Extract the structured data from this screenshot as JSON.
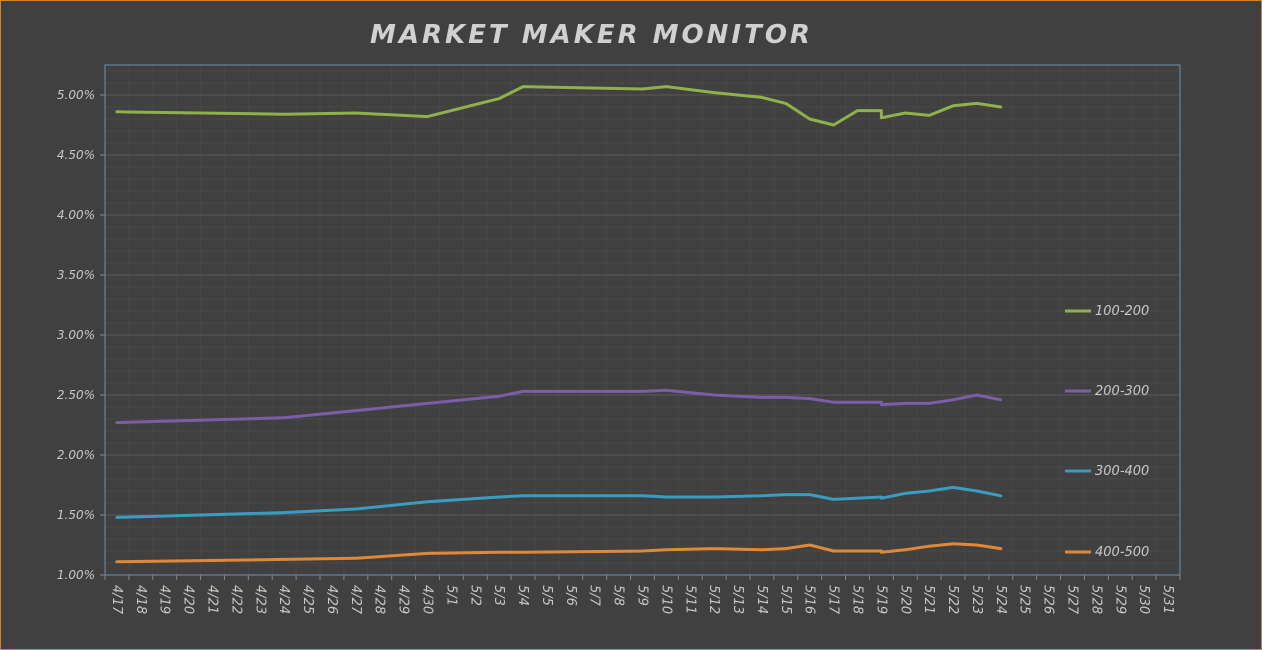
{
  "chart_data": {
    "type": "line",
    "title": "MARKET MAKER MONITOR",
    "xlabel": "",
    "ylabel": "",
    "ylim": [
      0.01,
      0.0525
    ],
    "y_ticks": [
      "1.00%",
      "1.50%",
      "2.00%",
      "2.50%",
      "3.00%",
      "3.50%",
      "4.00%",
      "4.50%",
      "5.00%"
    ],
    "categories": [
      "4/17",
      "4/18",
      "4/19",
      "4/20",
      "4/21",
      "4/22",
      "4/23",
      "4/24",
      "4/25",
      "4/26",
      "4/27",
      "4/28",
      "4/29",
      "4/30",
      "5/1",
      "5/2",
      "5/3",
      "5/4",
      "5/5",
      "5/6",
      "5/7",
      "5/8",
      "5/9",
      "5/10",
      "5/11",
      "5/12",
      "5/13",
      "5/14",
      "5/15",
      "5/16",
      "5/17",
      "5/18",
      "5/19",
      "5/20",
      "5/21",
      "5/22",
      "5/23",
      "5/24",
      "5/25",
      "5/26",
      "5/27",
      "5/28",
      "5/29",
      "5/30",
      "5/31"
    ],
    "legend_position": "right",
    "grid": true,
    "series": [
      {
        "name": "100-200",
        "color": "#8fb04b",
        "points": [
          {
            "x": 0.0,
            "y": 0.0486
          },
          {
            "x": 7.0,
            "y": 0.0484
          },
          {
            "x": 10.0,
            "y": 0.0485
          },
          {
            "x": 13.0,
            "y": 0.0482
          },
          {
            "x": 16.0,
            "y": 0.0497
          },
          {
            "x": 17.0,
            "y": 0.0507
          },
          {
            "x": 22.0,
            "y": 0.0505
          },
          {
            "x": 23.0,
            "y": 0.0507
          },
          {
            "x": 25.0,
            "y": 0.0502
          },
          {
            "x": 27.0,
            "y": 0.0498
          },
          {
            "x": 28.0,
            "y": 0.0493
          },
          {
            "x": 29.0,
            "y": 0.048
          },
          {
            "x": 30.0,
            "y": 0.0475
          },
          {
            "x": 31.0,
            "y": 0.0487
          },
          {
            "x": 32.0,
            "y": 0.0487
          },
          {
            "x": 32.0,
            "y": 0.0481
          },
          {
            "x": 33.0,
            "y": 0.0485
          },
          {
            "x": 34.0,
            "y": 0.0483
          },
          {
            "x": 35.0,
            "y": 0.0491
          },
          {
            "x": 36.0,
            "y": 0.0493
          },
          {
            "x": 37.0,
            "y": 0.049
          }
        ]
      },
      {
        "name": "200-300",
        "color": "#7b5ea7",
        "points": [
          {
            "x": 0.0,
            "y": 0.0227
          },
          {
            "x": 7.0,
            "y": 0.0231
          },
          {
            "x": 10.0,
            "y": 0.0237
          },
          {
            "x": 13.0,
            "y": 0.0243
          },
          {
            "x": 16.0,
            "y": 0.0249
          },
          {
            "x": 17.0,
            "y": 0.0253
          },
          {
            "x": 22.0,
            "y": 0.0253
          },
          {
            "x": 23.0,
            "y": 0.0254
          },
          {
            "x": 25.0,
            "y": 0.025
          },
          {
            "x": 27.0,
            "y": 0.0248
          },
          {
            "x": 28.0,
            "y": 0.0248
          },
          {
            "x": 29.0,
            "y": 0.0247
          },
          {
            "x": 30.0,
            "y": 0.0244
          },
          {
            "x": 32.0,
            "y": 0.0244
          },
          {
            "x": 32.0,
            "y": 0.0242
          },
          {
            "x": 33.0,
            "y": 0.0243
          },
          {
            "x": 34.0,
            "y": 0.0243
          },
          {
            "x": 35.0,
            "y": 0.0246
          },
          {
            "x": 36.0,
            "y": 0.025
          },
          {
            "x": 37.0,
            "y": 0.0246
          }
        ]
      },
      {
        "name": "300-400",
        "color": "#3a9cc0",
        "points": [
          {
            "x": 0.0,
            "y": 0.0148
          },
          {
            "x": 7.0,
            "y": 0.0152
          },
          {
            "x": 10.0,
            "y": 0.0155
          },
          {
            "x": 13.0,
            "y": 0.0161
          },
          {
            "x": 16.0,
            "y": 0.0165
          },
          {
            "x": 17.0,
            "y": 0.0166
          },
          {
            "x": 22.0,
            "y": 0.0166
          },
          {
            "x": 23.0,
            "y": 0.0165
          },
          {
            "x": 25.0,
            "y": 0.0165
          },
          {
            "x": 27.0,
            "y": 0.0166
          },
          {
            "x": 28.0,
            "y": 0.0167
          },
          {
            "x": 29.0,
            "y": 0.0167
          },
          {
            "x": 30.0,
            "y": 0.0163
          },
          {
            "x": 32.0,
            "y": 0.0165
          },
          {
            "x": 32.0,
            "y": 0.0164
          },
          {
            "x": 33.0,
            "y": 0.0168
          },
          {
            "x": 34.0,
            "y": 0.017
          },
          {
            "x": 35.0,
            "y": 0.0173
          },
          {
            "x": 36.0,
            "y": 0.017
          },
          {
            "x": 37.0,
            "y": 0.0166
          }
        ]
      },
      {
        "name": "400-500",
        "color": "#e0883a",
        "points": [
          {
            "x": 0.0,
            "y": 0.0111
          },
          {
            "x": 7.0,
            "y": 0.0113
          },
          {
            "x": 10.0,
            "y": 0.0114
          },
          {
            "x": 13.0,
            "y": 0.0118
          },
          {
            "x": 16.0,
            "y": 0.0119
          },
          {
            "x": 17.0,
            "y": 0.0119
          },
          {
            "x": 22.0,
            "y": 0.012
          },
          {
            "x": 23.0,
            "y": 0.0121
          },
          {
            "x": 25.0,
            "y": 0.0122
          },
          {
            "x": 27.0,
            "y": 0.0121
          },
          {
            "x": 28.0,
            "y": 0.0122
          },
          {
            "x": 29.0,
            "y": 0.0125
          },
          {
            "x": 30.0,
            "y": 0.012
          },
          {
            "x": 31.0,
            "y": 0.012
          },
          {
            "x": 32.0,
            "y": 0.012
          },
          {
            "x": 32.0,
            "y": 0.0119
          },
          {
            "x": 33.0,
            "y": 0.0121
          },
          {
            "x": 34.0,
            "y": 0.0124
          },
          {
            "x": 35.0,
            "y": 0.0126
          },
          {
            "x": 36.0,
            "y": 0.0125
          },
          {
            "x": 37.0,
            "y": 0.0122
          }
        ]
      }
    ]
  }
}
